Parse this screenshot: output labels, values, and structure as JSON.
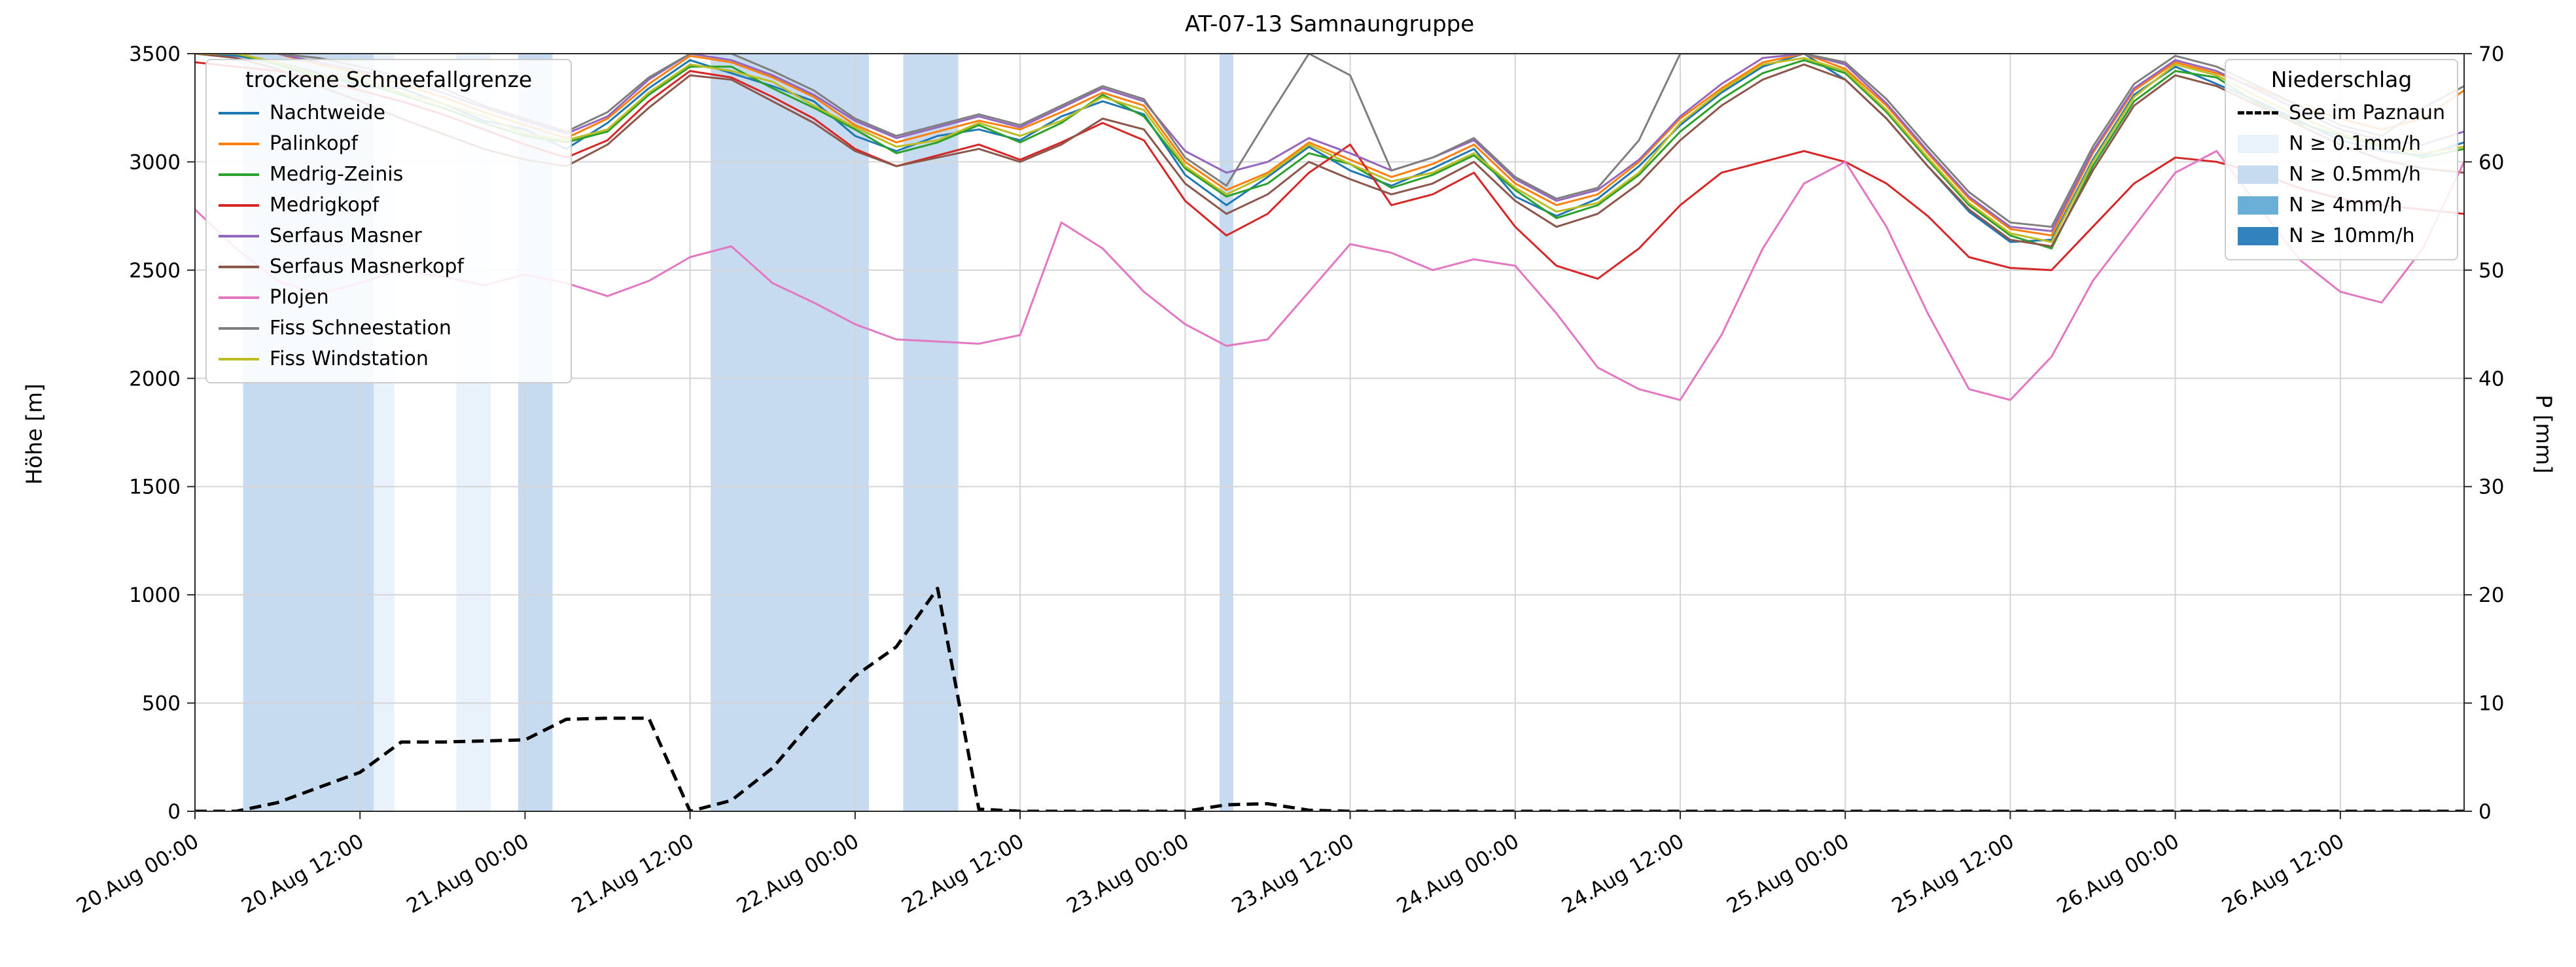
{
  "title": "AT-07-13 Samnaungruppe",
  "left_axis": {
    "label": "Höhe [m]",
    "ticks": [
      0,
      500,
      1000,
      1500,
      2000,
      2500,
      3000,
      3500
    ]
  },
  "right_axis": {
    "label": "P [mm]",
    "ticks": [
      0,
      10,
      20,
      30,
      40,
      50,
      60,
      70
    ]
  },
  "x_axis": {
    "tick_hours": [
      0,
      12,
      24,
      36,
      48,
      60,
      72,
      84,
      96,
      108,
      120,
      132,
      144,
      156
    ],
    "tick_labels": [
      "20.Aug 00:00",
      "20.Aug 12:00",
      "21.Aug 00:00",
      "21.Aug 12:00",
      "22.Aug 00:00",
      "22.Aug 12:00",
      "23.Aug 00:00",
      "23.Aug 12:00",
      "24.Aug 00:00",
      "24.Aug 12:00",
      "25.Aug 00:00",
      "25.Aug 12:00",
      "26.Aug 00:00",
      "26.Aug 12:00"
    ]
  },
  "legend_snow": {
    "title": "trockene Schneefallgrenze",
    "entries": [
      {
        "label": "Nachtweide",
        "color": "#1f77b4"
      },
      {
        "label": "Palinkopf",
        "color": "#ff7f0e"
      },
      {
        "label": "Medrig-Zeinis",
        "color": "#2ca02c"
      },
      {
        "label": "Medrigkopf",
        "color": "#d62728"
      },
      {
        "label": "Serfaus Masner",
        "color": "#9467bd"
      },
      {
        "label": "Serfaus Masnerkopf",
        "color": "#8c564b"
      },
      {
        "label": "Plojen",
        "color": "#e377c2"
      },
      {
        "label": "Fiss Schneestation",
        "color": "#7f7f7f"
      },
      {
        "label": "Fiss Windstation",
        "color": "#bcbd22"
      }
    ]
  },
  "legend_precip": {
    "title": "Niederschlag",
    "line_entry": {
      "label": "See im Paznaun",
      "color": "#000000"
    },
    "patch_entries": [
      {
        "label": "N ≥ 0.1mm/h",
        "color": "#e9f1fa"
      },
      {
        "label": "N ≥ 0.5mm/h",
        "color": "#c6dbef"
      },
      {
        "label": "N ≥ 4mm/h",
        "color": "#6baed6"
      },
      {
        "label": "N ≥ 10mm/h",
        "color": "#3182bd"
      }
    ]
  },
  "chart_data": {
    "type": "line",
    "x_unit": "hours since 20 Aug 00:00",
    "xlim": [
      0,
      165
    ],
    "ylim_left": [
      0,
      3500
    ],
    "ylim_right": [
      0,
      70
    ],
    "grid": true,
    "x_hours": [
      0,
      3,
      6,
      9,
      12,
      15,
      18,
      21,
      24,
      27,
      30,
      33,
      36,
      39,
      42,
      45,
      48,
      51,
      54,
      57,
      60,
      63,
      66,
      69,
      72,
      75,
      78,
      81,
      84,
      87,
      90,
      93,
      96,
      99,
      102,
      105,
      108,
      111,
      114,
      117,
      120,
      123,
      126,
      129,
      132,
      135,
      138,
      141,
      144,
      147,
      150,
      153,
      156,
      159,
      162,
      165
    ],
    "series": [
      {
        "name": "Nachtweide",
        "color": "#1f77b4",
        "axis": "left",
        "values": [
          3500,
          3490,
          3460,
          3410,
          3350,
          3340,
          3270,
          3190,
          3150,
          3060,
          3180,
          3340,
          3470,
          3410,
          3350,
          3280,
          3120,
          3050,
          3120,
          3150,
          3100,
          3210,
          3280,
          3220,
          2940,
          2800,
          2930,
          3070,
          2960,
          2890,
          2970,
          3060,
          2840,
          2750,
          2830,
          2980,
          3170,
          3320,
          3440,
          3500,
          3380,
          3200,
          2980,
          2770,
          2630,
          2640,
          3010,
          3310,
          3440,
          3360,
          3280,
          3190,
          3100,
          3050,
          3030,
          3090
        ]
      },
      {
        "name": "Palinkopf",
        "color": "#ff7f0e",
        "axis": "left",
        "values": [
          3500,
          3500,
          3500,
          3450,
          3410,
          3360,
          3300,
          3230,
          3170,
          3110,
          3200,
          3360,
          3490,
          3460,
          3390,
          3300,
          3170,
          3090,
          3140,
          3190,
          3150,
          3230,
          3320,
          3260,
          3000,
          2870,
          2950,
          3090,
          3010,
          2930,
          2990,
          3080,
          2900,
          2800,
          2850,
          3000,
          3200,
          3340,
          3460,
          3500,
          3430,
          3260,
          3040,
          2830,
          2690,
          2660,
          3040,
          3330,
          3460,
          3410,
          3340,
          3260,
          3200,
          3150,
          3200,
          3330
        ]
      },
      {
        "name": "Medrig-Zeinis",
        "color": "#2ca02c",
        "axis": "left",
        "values": [
          3500,
          3500,
          3450,
          3390,
          3370,
          3310,
          3250,
          3180,
          3120,
          3090,
          3140,
          3310,
          3440,
          3440,
          3340,
          3250,
          3150,
          3040,
          3090,
          3170,
          3090,
          3180,
          3310,
          3210,
          2970,
          2840,
          2900,
          3040,
          2990,
          2880,
          2940,
          3030,
          2870,
          2740,
          2800,
          2940,
          3140,
          3290,
          3410,
          3470,
          3410,
          3230,
          3010,
          2800,
          2660,
          2600,
          2980,
          3280,
          3420,
          3390,
          3270,
          3180,
          3120,
          3070,
          3020,
          3060
        ]
      },
      {
        "name": "Medrigkopf",
        "color": "#d62728",
        "axis": "left",
        "values": [
          3460,
          3440,
          3420,
          3380,
          3330,
          3280,
          3220,
          3150,
          3080,
          3020,
          3100,
          3280,
          3420,
          3390,
          3300,
          3200,
          3060,
          2980,
          3030,
          3080,
          3010,
          3090,
          3180,
          3100,
          2820,
          2660,
          2760,
          2950,
          3080,
          2800,
          2850,
          2950,
          2700,
          2520,
          2460,
          2600,
          2800,
          2950,
          3000,
          3050,
          3000,
          2900,
          2750,
          2560,
          2510,
          2500,
          2700,
          2900,
          3020,
          3000,
          2950,
          2880,
          2830,
          2800,
          2780,
          2760
        ]
      },
      {
        "name": "Serfaus Masner",
        "color": "#9467bd",
        "axis": "left",
        "values": [
          3500,
          3500,
          3500,
          3460,
          3420,
          3380,
          3320,
          3250,
          3190,
          3130,
          3210,
          3380,
          3500,
          3470,
          3400,
          3310,
          3190,
          3110,
          3160,
          3210,
          3160,
          3250,
          3340,
          3280,
          3050,
          2950,
          3000,
          3110,
          3040,
          2960,
          3020,
          3100,
          2920,
          2820,
          2870,
          3010,
          3210,
          3360,
          3480,
          3500,
          3450,
          3270,
          3050,
          2840,
          2700,
          2680,
          3050,
          3340,
          3470,
          3420,
          3330,
          3240,
          3150,
          3100,
          3080,
          3140
        ]
      },
      {
        "name": "Serfaus Masnerkopf",
        "color": "#8c564b",
        "axis": "left",
        "values": [
          3500,
          3480,
          3430,
          3350,
          3280,
          3200,
          3130,
          3060,
          3010,
          2980,
          3080,
          3250,
          3400,
          3380,
          3280,
          3180,
          3050,
          2980,
          3020,
          3060,
          3000,
          3080,
          3200,
          3150,
          2900,
          2760,
          2850,
          3000,
          2920,
          2850,
          2900,
          3000,
          2820,
          2700,
          2760,
          2900,
          3100,
          3260,
          3380,
          3450,
          3380,
          3200,
          2980,
          2780,
          2640,
          2610,
          2960,
          3260,
          3400,
          3350,
          3260,
          3170,
          3080,
          3010,
          2970,
          2950
        ]
      },
      {
        "name": "Plojen",
        "color": "#e377c2",
        "axis": "left",
        "values": [
          2780,
          2600,
          2450,
          2390,
          2440,
          2500,
          2470,
          2430,
          2480,
          2440,
          2380,
          2450,
          2560,
          2610,
          2440,
          2350,
          2250,
          2180,
          2170,
          2160,
          2200,
          2720,
          2600,
          2400,
          2250,
          2150,
          2180,
          2400,
          2620,
          2580,
          2500,
          2550,
          2520,
          2300,
          2050,
          1950,
          1900,
          2200,
          2600,
          2900,
          3000,
          2700,
          2300,
          1950,
          1900,
          2100,
          2450,
          2700,
          2950,
          3050,
          2800,
          2550,
          2400,
          2350,
          2600,
          3000
        ]
      },
      {
        "name": "Fiss Schneestation",
        "color": "#7f7f7f",
        "axis": "left",
        "values": [
          3500,
          3500,
          3500,
          3480,
          3440,
          3390,
          3340,
          3260,
          3200,
          3140,
          3230,
          3390,
          3500,
          3500,
          3420,
          3330,
          3200,
          3120,
          3170,
          3220,
          3170,
          3260,
          3350,
          3290,
          3020,
          2890,
          3200,
          3500,
          3400,
          2960,
          3020,
          3110,
          2930,
          2830,
          2880,
          3100,
          3500,
          3500,
          3500,
          3500,
          3460,
          3290,
          3070,
          2860,
          2720,
          2700,
          3070,
          3360,
          3490,
          3440,
          3350,
          3260,
          3170,
          3120,
          3250,
          3350
        ]
      },
      {
        "name": "Fiss Windstation",
        "color": "#bcbd22",
        "axis": "left",
        "values": [
          3500,
          3500,
          3460,
          3400,
          3390,
          3320,
          3270,
          3210,
          3130,
          3100,
          3150,
          3320,
          3450,
          3420,
          3370,
          3260,
          3160,
          3070,
          3100,
          3180,
          3120,
          3190,
          3300,
          3240,
          2980,
          2850,
          2940,
          3080,
          2990,
          2910,
          2950,
          3040,
          2880,
          2770,
          2810,
          2950,
          3180,
          3330,
          3450,
          3480,
          3420,
          3240,
          3020,
          2810,
          2670,
          2630,
          3000,
          3300,
          3450,
          3400,
          3300,
          3210,
          3130,
          3080,
          3040,
          3070
        ]
      }
    ],
    "dashed_series": {
      "name": "See im Paznaun",
      "color": "#000000",
      "axis": "right",
      "dash": true,
      "values": [
        0,
        0,
        0.8,
        2.2,
        3.6,
        6.4,
        6.4,
        6.5,
        6.6,
        8.5,
        8.6,
        8.6,
        0,
        1,
        4,
        8.5,
        12.5,
        15.2,
        20.6,
        0.2,
        0,
        0,
        0,
        0,
        0,
        0.6,
        0.7,
        0.1,
        0,
        0,
        0,
        0,
        0,
        0,
        0,
        0,
        0,
        0,
        0,
        0,
        0,
        0,
        0,
        0,
        0,
        0,
        0,
        0,
        0,
        0,
        0,
        0,
        0,
        0,
        0,
        0
      ]
    },
    "precip_bands": [
      {
        "from_hour": 3.5,
        "to_hour": 13,
        "level": "≥0.5mm/h",
        "color": "#c6dbef"
      },
      {
        "from_hour": 13,
        "to_hour": 14.5,
        "level": "≥0.1mm/h",
        "color": "#e9f1fa"
      },
      {
        "from_hour": 19,
        "to_hour": 21.5,
        "level": "≥0.1mm/h",
        "color": "#e9f1fa"
      },
      {
        "from_hour": 23.5,
        "to_hour": 26,
        "level": "≥0.5mm/h",
        "color": "#c6dbef"
      },
      {
        "from_hour": 37.5,
        "to_hour": 49,
        "level": "≥0.5mm/h",
        "color": "#c6dbef"
      },
      {
        "from_hour": 51.5,
        "to_hour": 55.5,
        "level": "≥0.5mm/h",
        "color": "#c6dbef"
      },
      {
        "from_hour": 74.5,
        "to_hour": 75.5,
        "level": "≥0.5mm/h",
        "color": "#c6dbef"
      }
    ]
  }
}
